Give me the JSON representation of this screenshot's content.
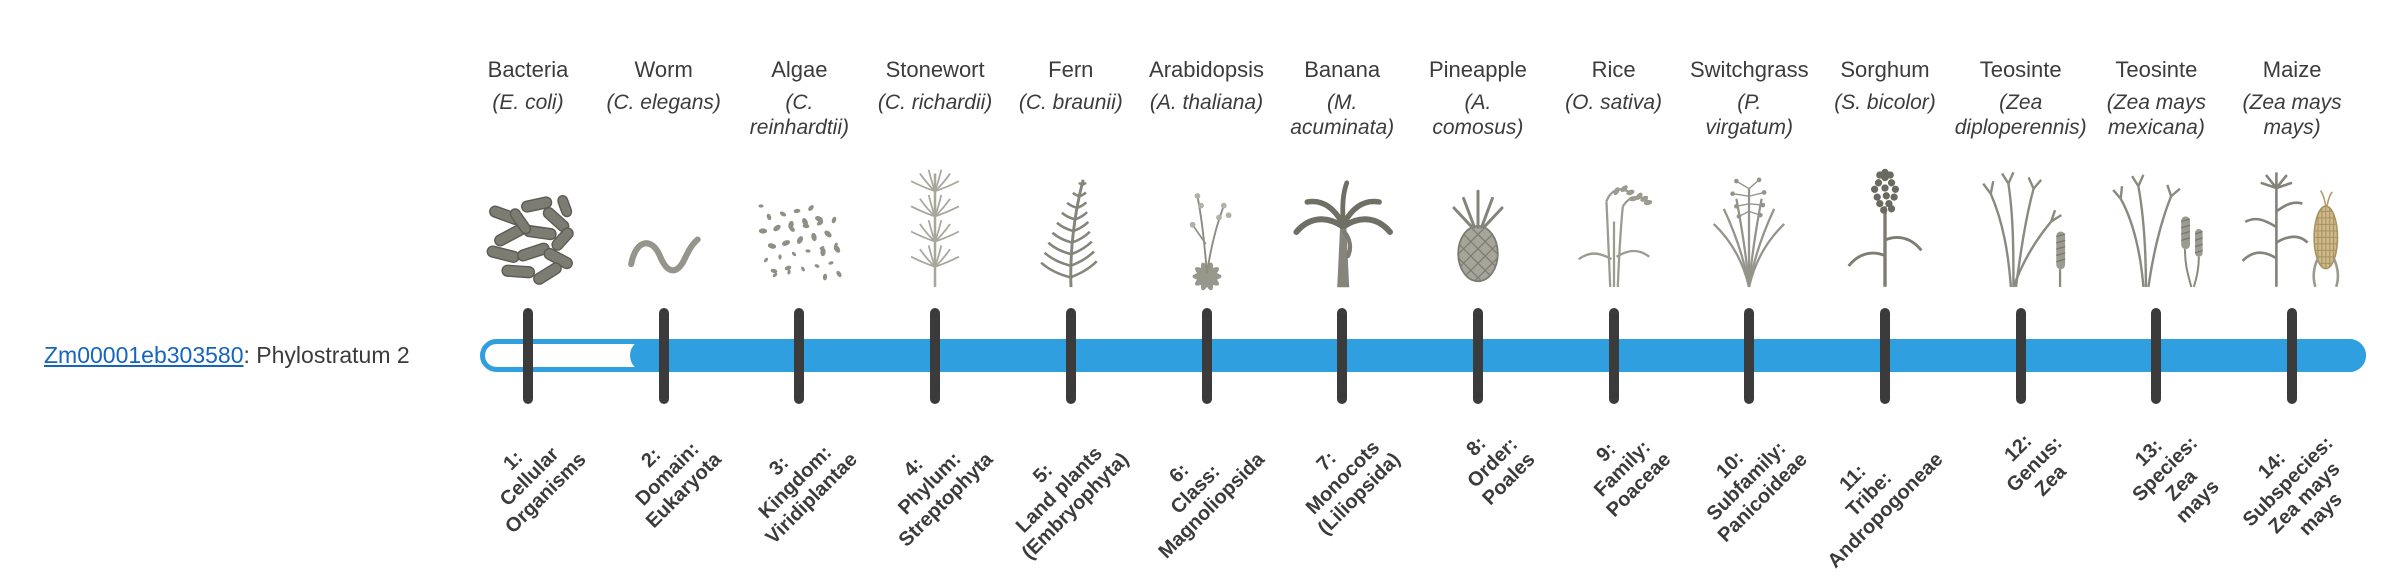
{
  "gene": {
    "id": "Zm00001eb303580",
    "phylostratum_suffix": ": Phylostratum 2",
    "phylostratum": 2
  },
  "colors": {
    "bar_blue": "#2f9fe0",
    "tick_dark": "#3b3b3b",
    "link_blue": "#1565c0"
  },
  "organisms": [
    {
      "name": "Bacteria",
      "sci": "(E. coli)",
      "icon": "bacteria-icon",
      "label_lines": [
        "1:",
        "Cellular",
        "Organisms"
      ]
    },
    {
      "name": "Worm",
      "sci": "(C. elegans)",
      "icon": "worm-icon",
      "label_lines": [
        "2:",
        "Domain:",
        "Eukaryota"
      ]
    },
    {
      "name": "Algae",
      "sci": "(C.\nreinhardtii)",
      "icon": "algae-icon",
      "label_lines": [
        "3:",
        "Kingdom:",
        "Viridiplantae"
      ]
    },
    {
      "name": "Stonewort",
      "sci": "(C. richardii)",
      "icon": "stonewort-icon",
      "label_lines": [
        "4:",
        "Phylum:",
        "Streptophyta"
      ]
    },
    {
      "name": "Fern",
      "sci": "(C. braunii)",
      "icon": "fern-icon",
      "label_lines": [
        "5:",
        "Land plants",
        "(Embryophyta)"
      ]
    },
    {
      "name": "Arabidopsis",
      "sci": "(A. thaliana)",
      "icon": "arabidopsis-icon",
      "label_lines": [
        "6:",
        "Class:",
        "Magnoliopsida"
      ]
    },
    {
      "name": "Banana",
      "sci": "(M.\nacuminata)",
      "icon": "banana-icon",
      "label_lines": [
        "7:",
        "Monocots",
        "(Liliopsida)"
      ]
    },
    {
      "name": "Pineapple",
      "sci": "(A.\ncomosus)",
      "icon": "pineapple-icon",
      "label_lines": [
        "8:",
        "Order:",
        "Poales"
      ]
    },
    {
      "name": "Rice",
      "sci": "(O. sativa)",
      "icon": "rice-icon",
      "label_lines": [
        "9:",
        "Family:",
        "Poaceae"
      ]
    },
    {
      "name": "Switchgrass",
      "sci": "(P.\nvirgatum)",
      "icon": "switchgrass-icon",
      "label_lines": [
        "10:",
        "Subfamily:",
        "Panicoideae"
      ]
    },
    {
      "name": "Sorghum",
      "sci": "(S. bicolor)",
      "icon": "sorghum-icon",
      "label_lines": [
        "11:",
        "Tribe:",
        "Andropogoneae"
      ]
    },
    {
      "name": "Teosinte",
      "sci": "(Zea\ndiploperennis)",
      "icon": "teosinte-icon",
      "label_lines": [
        "12:",
        "Genus:",
        "Zea"
      ]
    },
    {
      "name": "Teosinte",
      "sci": "(Zea mays\nmexicana)",
      "icon": "teosinte-icon-2",
      "label_lines": [
        "13:",
        "Species:",
        "Zea",
        "mays"
      ]
    },
    {
      "name": "Maize",
      "sci": "(Zea mays\nmays)",
      "icon": "maize-icon",
      "label_lines": [
        "14:",
        "Subspecies:",
        "Zea mays",
        "mays"
      ]
    }
  ]
}
